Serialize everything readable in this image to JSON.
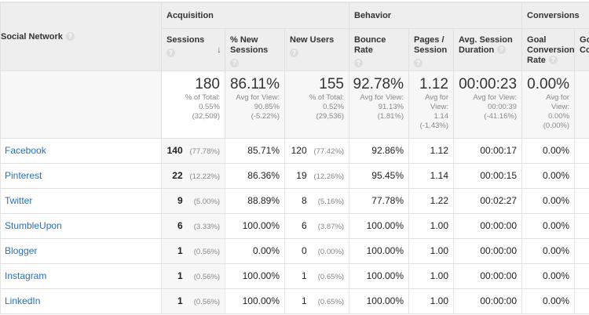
{
  "groups": {
    "acquisition": "Acquisition",
    "behavior": "Behavior",
    "conversions": "Conversions"
  },
  "columns": {
    "social_network": "Social Network",
    "sessions": "Sessions",
    "pct_new_sessions": "% New Sessions",
    "new_users": "New Users",
    "bounce_rate": "Bounce Rate",
    "pages_session": "Pages / Session",
    "avg_session_duration": "Avg. Session Duration",
    "goal_conversion_rate": "Goal Conversion Rate",
    "goal_completions": "Goal Co"
  },
  "help_icon": "?",
  "sort_icon": "↓",
  "totals": {
    "sessions": {
      "value": "180",
      "l1": "% of Total:",
      "l2": "0.55%",
      "l3": "(32,509)"
    },
    "pct_new": {
      "value": "86.11%",
      "l1": "Avg for View:",
      "l2": "90.85%",
      "l3": "(-5.22%)"
    },
    "new_users": {
      "value": "155",
      "l1": "% of Total:",
      "l2": "0.52%",
      "l3": "(29,536)"
    },
    "bounce": {
      "value": "92.78%",
      "l1": "Avg for View:",
      "l2": "91.13%",
      "l3": "(1.81%)"
    },
    "pages": {
      "value": "1.12",
      "l1": "Avg for",
      "l2": "View:",
      "l3": "1.14",
      "l4": "(-1.43%)"
    },
    "duration": {
      "value": "00:00:23",
      "l1": "Avg for View:",
      "l2": "00:00:39",
      "l3": "(-41.16%)"
    },
    "goal_rate": {
      "value": "0.00%",
      "l1": "Avg for",
      "l2": "View:",
      "l3": "0.00%",
      "l4": "(0.00%)"
    }
  },
  "rows": [
    {
      "name": "Facebook",
      "sessions": "140",
      "sessions_pct": "(77.78%)",
      "pct_new": "85.71%",
      "new_users": "120",
      "new_users_pct": "(77.42%)",
      "bounce": "92.86%",
      "pages": "1.12",
      "duration": "00:00:17",
      "goal_rate": "0.00%"
    },
    {
      "name": "Pinterest",
      "sessions": "22",
      "sessions_pct": "(12.22%)",
      "pct_new": "86.36%",
      "new_users": "19",
      "new_users_pct": "(12.26%)",
      "bounce": "95.45%",
      "pages": "1.14",
      "duration": "00:00:15",
      "goal_rate": "0.00%"
    },
    {
      "name": "Twitter",
      "sessions": "9",
      "sessions_pct": "(5.00%)",
      "pct_new": "88.89%",
      "new_users": "8",
      "new_users_pct": "(5.16%)",
      "bounce": "77.78%",
      "pages": "1.22",
      "duration": "00:02:27",
      "goal_rate": "0.00%"
    },
    {
      "name": "StumbleUpon",
      "sessions": "6",
      "sessions_pct": "(3.33%)",
      "pct_new": "100.00%",
      "new_users": "6",
      "new_users_pct": "(3.87%)",
      "bounce": "100.00%",
      "pages": "1.00",
      "duration": "00:00:00",
      "goal_rate": "0.00%"
    },
    {
      "name": "Blogger",
      "sessions": "1",
      "sessions_pct": "(0.56%)",
      "pct_new": "0.00%",
      "new_users": "0",
      "new_users_pct": "(0.00%)",
      "bounce": "100.00%",
      "pages": "1.00",
      "duration": "00:00:00",
      "goal_rate": "0.00%"
    },
    {
      "name": "Instagram",
      "sessions": "1",
      "sessions_pct": "(0.56%)",
      "pct_new": "100.00%",
      "new_users": "1",
      "new_users_pct": "(0.65%)",
      "bounce": "100.00%",
      "pages": "1.00",
      "duration": "00:00:00",
      "goal_rate": "0.00%"
    },
    {
      "name": "LinkedIn",
      "sessions": "1",
      "sessions_pct": "(0.56%)",
      "pct_new": "100.00%",
      "new_users": "1",
      "new_users_pct": "(0.65%)",
      "bounce": "100.00%",
      "pages": "1.00",
      "duration": "00:00:00",
      "goal_rate": "0.00%"
    }
  ]
}
